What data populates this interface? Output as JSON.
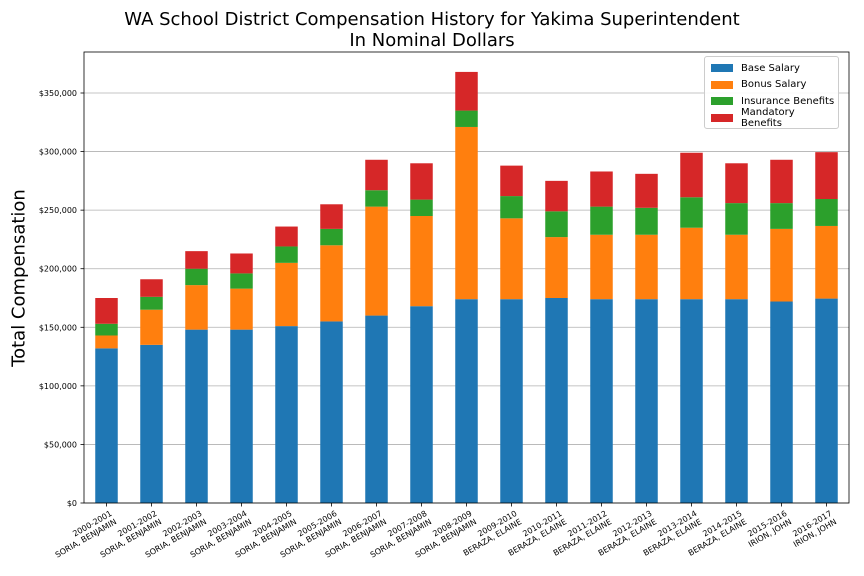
{
  "chart_data": {
    "type": "bar",
    "stacked": true,
    "title": "WA School District Compensation History for Yakima Superintendent",
    "subtitle": "In Nominal Dollars",
    "xlabel": "",
    "ylabel": "Total Compensation",
    "ylim": [
      0,
      385000
    ],
    "yticks": [
      0,
      50000,
      100000,
      150000,
      200000,
      250000,
      300000,
      350000
    ],
    "ytick_labels": [
      "$0",
      "$50,000",
      "$100,000",
      "$150,000",
      "$200,000",
      "$250,000",
      "$300,000",
      "$350,000"
    ],
    "grid": "horizontal",
    "legend_position": "top-right",
    "categories": [
      [
        "2000-2001",
        "SORIA, BENJAMIN"
      ],
      [
        "2001-2002",
        "SORIA, BENJAMIN"
      ],
      [
        "2002-2003",
        "SORIA, BENJAMIN"
      ],
      [
        "2003-2004",
        "SORIA, BENJAMIN"
      ],
      [
        "2004-2005",
        "SORIA, BENJAMIN"
      ],
      [
        "2005-2006",
        "SORIA, BENJAMIN"
      ],
      [
        "2006-2007",
        "SORIA, BENJAMIN"
      ],
      [
        "2007-2008",
        "SORIA, BENJAMIN"
      ],
      [
        "2008-2009",
        "SORIA, BENJAMIN"
      ],
      [
        "2009-2010",
        "BERAZA, ELAINE"
      ],
      [
        "2010-2011",
        "BERAZA, ELAINE"
      ],
      [
        "2011-2012",
        "BERAZA, ELAINE"
      ],
      [
        "2012-2013",
        "BERAZA, ELAINE"
      ],
      [
        "2013-2014",
        "BERAZA, ELAINE"
      ],
      [
        "2014-2015",
        "BERAZA, ELAINE"
      ],
      [
        "2015-2016",
        "IRION, JOHN"
      ],
      [
        "2016-2017",
        "IRION, JOHN"
      ]
    ],
    "series": [
      {
        "name": "Base Salary",
        "color": "#1f77b4",
        "values": [
          132000,
          135000,
          148000,
          148000,
          151000,
          155000,
          160000,
          168000,
          174000,
          174000,
          175000,
          174000,
          174000,
          174000,
          174000,
          172000,
          174500
        ]
      },
      {
        "name": "Bonus Salary",
        "color": "#ff7f0e",
        "values": [
          11000,
          30000,
          38000,
          35000,
          54000,
          65000,
          93000,
          77000,
          147000,
          69000,
          52000,
          55000,
          55000,
          61000,
          55000,
          62000,
          62000
        ]
      },
      {
        "name": "Insurance Benefits",
        "color": "#2ca02c",
        "values": [
          10000,
          11000,
          14000,
          13000,
          14000,
          14000,
          14000,
          14000,
          14000,
          19000,
          22000,
          24000,
          23000,
          26000,
          27000,
          22000,
          23000
        ]
      },
      {
        "name": "Mandatory Benefits",
        "color": "#d62728",
        "values": [
          22000,
          15000,
          15000,
          17000,
          17000,
          21000,
          26000,
          31000,
          33000,
          26000,
          26000,
          30000,
          29000,
          38000,
          34000,
          37000,
          40000
        ]
      }
    ]
  }
}
